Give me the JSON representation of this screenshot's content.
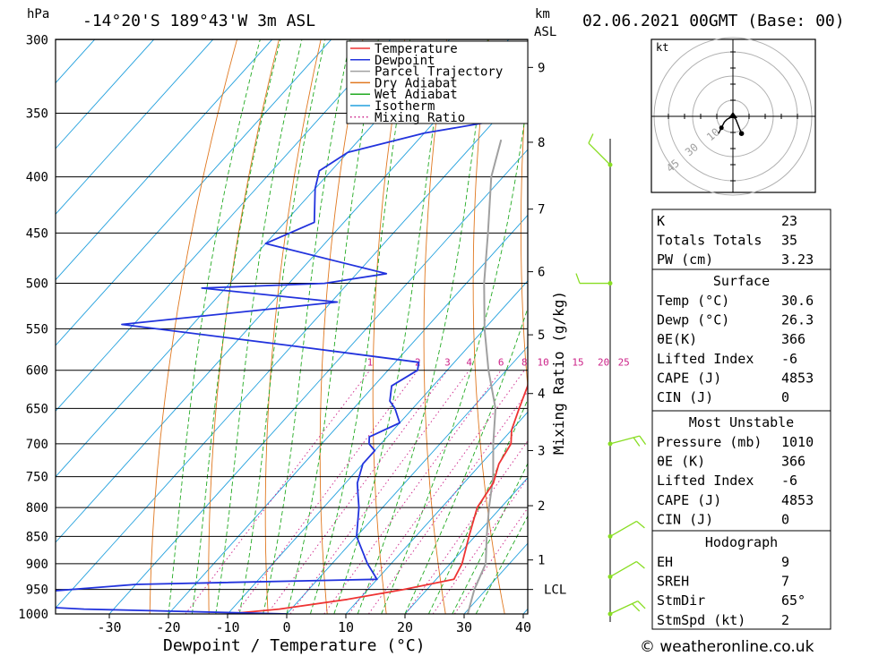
{
  "header": {
    "title": "-14°20'S  189°43'W  3m  ASL",
    "datetime": "02.06.2021  00GMT  (Base: 00)",
    "pressure_unit": "hPa",
    "height_unit_line1": "km",
    "height_unit_line2": "ASL"
  },
  "footer": {
    "copyright": "© weatheronline.co.uk"
  },
  "chart_data": {
    "type": "skew-t",
    "xlabel": "Dewpoint / Temperature (°C)",
    "ylabel_right": "Mixing Ratio (g/kg)",
    "xticks": [
      -30,
      -20,
      -10,
      0,
      10,
      20,
      30,
      40
    ],
    "xlim": [
      -40,
      40
    ],
    "ylim_hpa": [
      300,
      1000
    ],
    "pressure_ticks": [
      300,
      350,
      400,
      450,
      500,
      550,
      600,
      650,
      700,
      750,
      800,
      850,
      900,
      950,
      1000
    ],
    "height_ticks_km": [
      {
        "label": "9",
        "p": 318
      },
      {
        "label": "8",
        "p": 372
      },
      {
        "label": "7",
        "p": 428
      },
      {
        "label": "6",
        "p": 488
      },
      {
        "label": "5",
        "p": 557
      },
      {
        "label": "4",
        "p": 630
      },
      {
        "label": "3",
        "p": 710
      },
      {
        "label": "2",
        "p": 797
      },
      {
        "label": "1",
        "p": 893
      },
      {
        "label": "LCL",
        "p": 950
      }
    ],
    "mixing_ratio_labels": [
      "1",
      "2",
      "3",
      "4",
      "6",
      "8",
      "10",
      "15",
      "20",
      "25"
    ],
    "mixing_ratio_values": [
      1,
      2,
      3,
      4,
      6,
      8,
      10,
      15,
      20,
      25
    ],
    "isotherm_start": -130,
    "isotherm_end": 40,
    "dry_adiabat_thetas": [
      250,
      260,
      270,
      280,
      290,
      300,
      310,
      320,
      330,
      340,
      350,
      360,
      370,
      380,
      390,
      400,
      410,
      420,
      430,
      440,
      450,
      460,
      470
    ],
    "wet_adiabat_starts": [
      -20,
      -16,
      -12,
      -8,
      -4,
      0,
      4,
      8,
      12,
      16,
      20,
      24,
      28,
      32
    ],
    "legend": [
      "Temperature",
      "Dewpoint",
      "Parcel Trajectory",
      "Dry Adiabat",
      "Wet Adiabat",
      "Isotherm",
      "Mixing Ratio"
    ],
    "colors": {
      "temperature": "#ee3333",
      "dewpoint": "#2233dd",
      "parcel": "#a0a0a0",
      "dry_adiabat": "#e07820",
      "wet_adiabat": "#22aa22",
      "isotherm": "#22a0dd",
      "mixing_ratio": "#cc2288",
      "wind": "#88dd22"
    },
    "temperature": [
      [
        300,
        -36
      ],
      [
        320,
        -33
      ],
      [
        340,
        -29
      ],
      [
        350,
        -28
      ],
      [
        370,
        -24
      ],
      [
        385,
        -21
      ],
      [
        400,
        -17
      ],
      [
        420,
        -13
      ],
      [
        440,
        -10
      ],
      [
        460,
        -8
      ],
      [
        480,
        -5
      ],
      [
        500,
        -4
      ],
      [
        520,
        -3
      ],
      [
        540,
        -2
      ],
      [
        560,
        0
      ],
      [
        580,
        2
      ],
      [
        600,
        4
      ],
      [
        620,
        6
      ],
      [
        650,
        8
      ],
      [
        680,
        10
      ],
      [
        700,
        12
      ],
      [
        730,
        13
      ],
      [
        760,
        15
      ],
      [
        800,
        16
      ],
      [
        850,
        19
      ],
      [
        900,
        22
      ],
      [
        930,
        23
      ],
      [
        950,
        16
      ],
      [
        970,
        8
      ],
      [
        990,
        -2
      ],
      [
        1000,
        -10
      ]
    ],
    "dewpoint": [
      [
        300,
        -35
      ],
      [
        315,
        -36
      ],
      [
        330,
        -39
      ],
      [
        345,
        -42
      ],
      [
        355,
        -39
      ],
      [
        365,
        -50
      ],
      [
        380,
        -60
      ],
      [
        395,
        -62
      ],
      [
        410,
        -60
      ],
      [
        440,
        -55
      ],
      [
        460,
        -60
      ],
      [
        490,
        -35
      ],
      [
        500,
        -44
      ],
      [
        505,
        -64
      ],
      [
        520,
        -39
      ],
      [
        545,
        -72
      ],
      [
        570,
        -40
      ],
      [
        590,
        -16
      ],
      [
        600,
        -15
      ],
      [
        620,
        -17
      ],
      [
        640,
        -15
      ],
      [
        650,
        -13
      ],
      [
        670,
        -10
      ],
      [
        690,
        -13
      ],
      [
        700,
        -12
      ],
      [
        710,
        -10
      ],
      [
        730,
        -10
      ],
      [
        760,
        -8
      ],
      [
        780,
        -6
      ],
      [
        800,
        -4
      ],
      [
        850,
        0
      ],
      [
        900,
        6
      ],
      [
        930,
        10
      ],
      [
        940,
        -30
      ],
      [
        960,
        -50
      ],
      [
        975,
        -60
      ],
      [
        990,
        -35
      ],
      [
        1000,
        0
      ]
    ],
    "parcel": [
      [
        370,
        -36
      ],
      [
        400,
        -32
      ],
      [
        450,
        -24
      ],
      [
        500,
        -17
      ],
      [
        550,
        -10
      ],
      [
        600,
        -3
      ],
      [
        650,
        4
      ],
      [
        700,
        9
      ],
      [
        750,
        14
      ],
      [
        800,
        18
      ],
      [
        850,
        22
      ],
      [
        900,
        26
      ],
      [
        950,
        28
      ],
      [
        1000,
        30.6
      ]
    ],
    "wind_barbs": [
      {
        "p": 390,
        "dir": 315,
        "kt": 10
      },
      {
        "p": 500,
        "dir": 270,
        "kt": 10
      },
      {
        "p": 700,
        "dir": 75,
        "kt": 15
      },
      {
        "p": 850,
        "dir": 60,
        "kt": 10
      },
      {
        "p": 925,
        "dir": 60,
        "kt": 10
      },
      {
        "p": 1000,
        "dir": 65,
        "kt": 15
      }
    ],
    "hodograph": {
      "unit": "kt",
      "ring_labels": [
        "10",
        "30",
        "45"
      ],
      "points": [
        [
          0,
          0
        ],
        [
          -2,
          -1
        ],
        [
          -3,
          -2
        ],
        [
          -4,
          -4
        ],
        [
          -5,
          -6
        ],
        [
          1,
          -1
        ],
        [
          3,
          -6
        ]
      ]
    }
  },
  "stats": {
    "general": [
      {
        "label": "K",
        "value": "23"
      },
      {
        "label": "Totals Totals",
        "value": "35"
      },
      {
        "label": "PW (cm)",
        "value": "3.23"
      }
    ],
    "surface_title": "Surface",
    "surface": [
      {
        "label": "Temp (°C)",
        "value": "30.6"
      },
      {
        "label": "Dewp (°C)",
        "value": "26.3"
      },
      {
        "label": "θE(K)",
        "value": "366"
      },
      {
        "label": "Lifted Index",
        "value": "-6"
      },
      {
        "label": "CAPE (J)",
        "value": "4853"
      },
      {
        "label": "CIN (J)",
        "value": "0"
      }
    ],
    "mu_title": "Most Unstable",
    "mu": [
      {
        "label": "Pressure (mb)",
        "value": "1010"
      },
      {
        "label": "θE (K)",
        "value": "366"
      },
      {
        "label": "Lifted Index",
        "value": "-6"
      },
      {
        "label": "CAPE (J)",
        "value": "4853"
      },
      {
        "label": "CIN (J)",
        "value": "0"
      }
    ],
    "hodo_title": "Hodograph",
    "hodo": [
      {
        "label": "EH",
        "value": "9"
      },
      {
        "label": "SREH",
        "value": "7"
      },
      {
        "label": "StmDir",
        "value": "65°"
      },
      {
        "label": "StmSpd (kt)",
        "value": "2"
      }
    ]
  }
}
